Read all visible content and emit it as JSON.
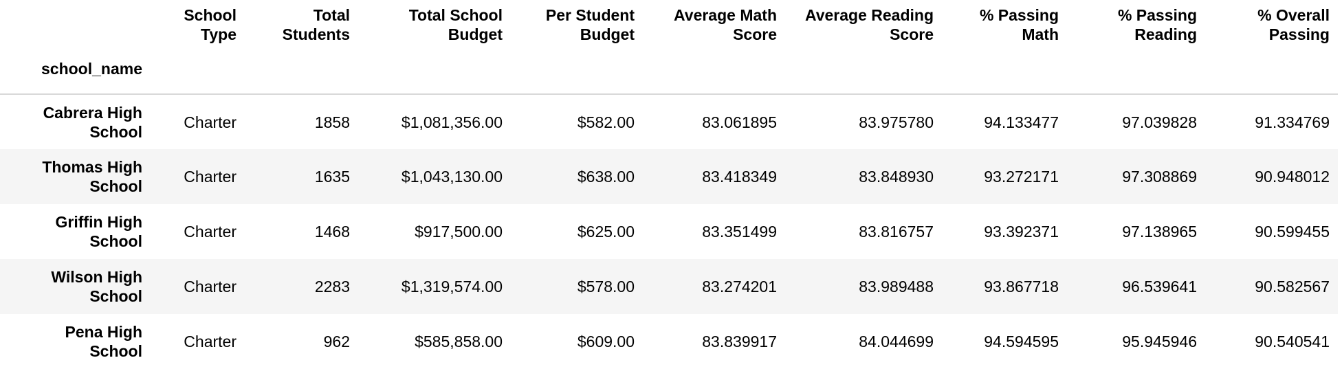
{
  "table": {
    "index_name": "school_name",
    "columns": [
      "School Type",
      "Total Students",
      "Total School Budget",
      "Per Student Budget",
      "Average Math Score",
      "Average Reading Score",
      "% Passing Math",
      "% Passing Reading",
      "% Overall Passing"
    ],
    "rows": [
      {
        "name": "Cabrera High School",
        "cells": [
          "Charter",
          "1858",
          "$1,081,356.00",
          "$582.00",
          "83.061895",
          "83.975780",
          "94.133477",
          "97.039828",
          "91.334769"
        ]
      },
      {
        "name": "Thomas High School",
        "cells": [
          "Charter",
          "1635",
          "$1,043,130.00",
          "$638.00",
          "83.418349",
          "83.848930",
          "93.272171",
          "97.308869",
          "90.948012"
        ]
      },
      {
        "name": "Griffin High School",
        "cells": [
          "Charter",
          "1468",
          "$917,500.00",
          "$625.00",
          "83.351499",
          "83.816757",
          "93.392371",
          "97.138965",
          "90.599455"
        ]
      },
      {
        "name": "Wilson High School",
        "cells": [
          "Charter",
          "2283",
          "$1,319,574.00",
          "$578.00",
          "83.274201",
          "83.989488",
          "93.867718",
          "96.539641",
          "90.582567"
        ]
      },
      {
        "name": "Pena High School",
        "cells": [
          "Charter",
          "962",
          "$585,858.00",
          "$609.00",
          "83.839917",
          "84.044699",
          "94.594595",
          "95.945946",
          "90.540541"
        ]
      }
    ]
  }
}
